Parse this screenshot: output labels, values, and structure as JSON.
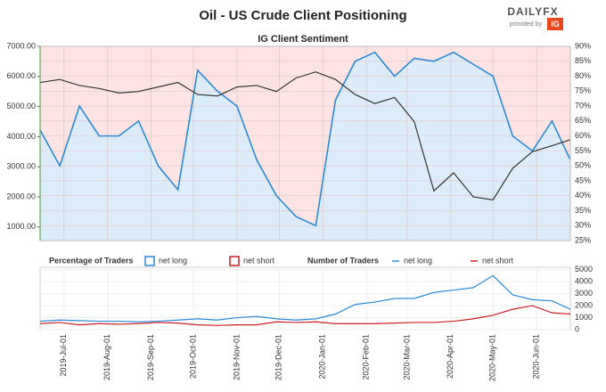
{
  "branding": {
    "logo": "DAILYFX",
    "provided_by": "provided by",
    "ig": "IG"
  },
  "chart_data": [
    {
      "type": "line",
      "title": "Oil - US Crude Client Positioning",
      "subtitle": "IG Client Sentiment",
      "x": [
        "2019-06-14",
        "2019-06-28",
        "2019-07-12",
        "2019-07-26",
        "2019-08-09",
        "2019-08-23",
        "2019-09-06",
        "2019-09-20",
        "2019-10-04",
        "2019-10-18",
        "2019-11-01",
        "2019-11-15",
        "2019-11-29",
        "2019-12-13",
        "2019-12-27",
        "2020-01-10",
        "2020-01-24",
        "2020-02-07",
        "2020-02-21",
        "2020-03-06",
        "2020-03-20",
        "2020-04-03",
        "2020-04-17",
        "2020-05-01",
        "2020-05-15",
        "2020-05-29",
        "2020-06-12",
        "2020-06-25"
      ],
      "xlim": [
        "2019-06-14",
        "2020-06-25"
      ],
      "price": {
        "color": "#333333",
        "values": [
          5800,
          5900,
          5700,
          5600,
          5450,
          5500,
          5650,
          5800,
          5400,
          5350,
          5650,
          5700,
          5500,
          5950,
          6150,
          5900,
          5400,
          5100,
          5300,
          4500,
          2200,
          2800,
          2000,
          1900,
          2950,
          3500,
          3700,
          3900
        ]
      },
      "series": [
        {
          "name": "net long",
          "color": "#2b8ad8",
          "axis": "y2",
          "values": [
            62,
            50,
            70,
            60,
            60,
            65,
            50,
            42,
            82,
            75,
            70,
            52,
            40,
            33,
            30,
            72,
            85,
            88,
            80,
            86,
            85,
            88,
            84,
            80,
            60,
            55,
            65,
            52
          ]
        }
      ],
      "legend_title": "Percentage of Traders",
      "legend_entries": [
        {
          "name": "net long",
          "color": "#2b8ad8"
        },
        {
          "name": "net short",
          "color": "#cc1f27"
        }
      ],
      "ylim": [
        550,
        7000
      ],
      "yticks": [
        {
          "value": 1000,
          "label": "1000.00"
        },
        {
          "value": 2000,
          "label": "2000.00"
        },
        {
          "value": 3000,
          "label": "3000.00"
        },
        {
          "value": 4000,
          "label": "4000.00"
        },
        {
          "value": 5000,
          "label": "5000.00"
        },
        {
          "value": 6000,
          "label": "6000.00"
        },
        {
          "value": 7000,
          "label": "7000.00"
        }
      ],
      "y2lim": [
        25,
        90
      ],
      "y2ticks": [
        {
          "value": 25,
          "label": "25%"
        },
        {
          "value": 30,
          "label": "30%"
        },
        {
          "value": 35,
          "label": "35%"
        },
        {
          "value": 40,
          "label": "40%"
        },
        {
          "value": 45,
          "label": "45%"
        },
        {
          "value": 50,
          "label": "50%"
        },
        {
          "value": 55,
          "label": "55%"
        },
        {
          "value": 60,
          "label": "60%"
        },
        {
          "value": 65,
          "label": "65%"
        },
        {
          "value": 70,
          "label": "70%"
        },
        {
          "value": 75,
          "label": "75%"
        },
        {
          "value": 80,
          "label": "80%"
        },
        {
          "value": 85,
          "label": "85%"
        },
        {
          "value": 90,
          "label": "90%"
        }
      ]
    },
    {
      "type": "line",
      "legend_title": "Number of Traders",
      "x": [
        "2019-06-14",
        "2019-06-28",
        "2019-07-12",
        "2019-07-26",
        "2019-08-09",
        "2019-08-23",
        "2019-09-06",
        "2019-09-20",
        "2019-10-04",
        "2019-10-18",
        "2019-11-01",
        "2019-11-15",
        "2019-11-29",
        "2019-12-13",
        "2019-12-27",
        "2020-01-10",
        "2020-01-24",
        "2020-02-07",
        "2020-02-21",
        "2020-03-06",
        "2020-03-20",
        "2020-04-03",
        "2020-04-17",
        "2020-05-01",
        "2020-05-15",
        "2020-05-29",
        "2020-06-12",
        "2020-06-25"
      ],
      "xlim": [
        "2019-06-14",
        "2020-06-25"
      ],
      "series": [
        {
          "name": "net long",
          "color": "#2b8ad8",
          "values": [
            700,
            800,
            750,
            700,
            700,
            650,
            700,
            800,
            900,
            800,
            1000,
            1100,
            900,
            800,
            900,
            1300,
            2100,
            2300,
            2600,
            2600,
            3100,
            3300,
            3500,
            4500,
            2900,
            2500,
            2400,
            1700
          ]
        },
        {
          "name": "net short",
          "color": "#cc1f27",
          "values": [
            500,
            600,
            400,
            500,
            450,
            500,
            600,
            550,
            400,
            350,
            400,
            400,
            650,
            600,
            650,
            500,
            500,
            500,
            550,
            600,
            600,
            700,
            900,
            1200,
            1700,
            2000,
            1400,
            1300
          ]
        }
      ],
      "ylim": [
        0,
        5200
      ],
      "yticks": [
        0,
        1000,
        2000,
        3000,
        4000,
        5000
      ],
      "xticks": [
        {
          "value": "2019-07-01",
          "label": "2019-Jul-01"
        },
        {
          "value": "2019-08-01",
          "label": "2019-Aug-01"
        },
        {
          "value": "2019-09-01",
          "label": "2019-Sep-01"
        },
        {
          "value": "2019-10-01",
          "label": "2019-Oct-01"
        },
        {
          "value": "2019-11-01",
          "label": "2019-Nov-01"
        },
        {
          "value": "2019-12-01",
          "label": "2019-Dec-01"
        },
        {
          "value": "2020-01-01",
          "label": "2020-Jan-01"
        },
        {
          "value": "2020-02-01",
          "label": "2020-Feb-01"
        },
        {
          "value": "2020-03-01",
          "label": "2020-Mar-01"
        },
        {
          "value": "2020-04-01",
          "label": "2020-Apr-01"
        },
        {
          "value": "2020-05-01",
          "label": "2020-May-01"
        },
        {
          "value": "2020-06-01",
          "label": "2020-Jun-01"
        }
      ]
    }
  ]
}
